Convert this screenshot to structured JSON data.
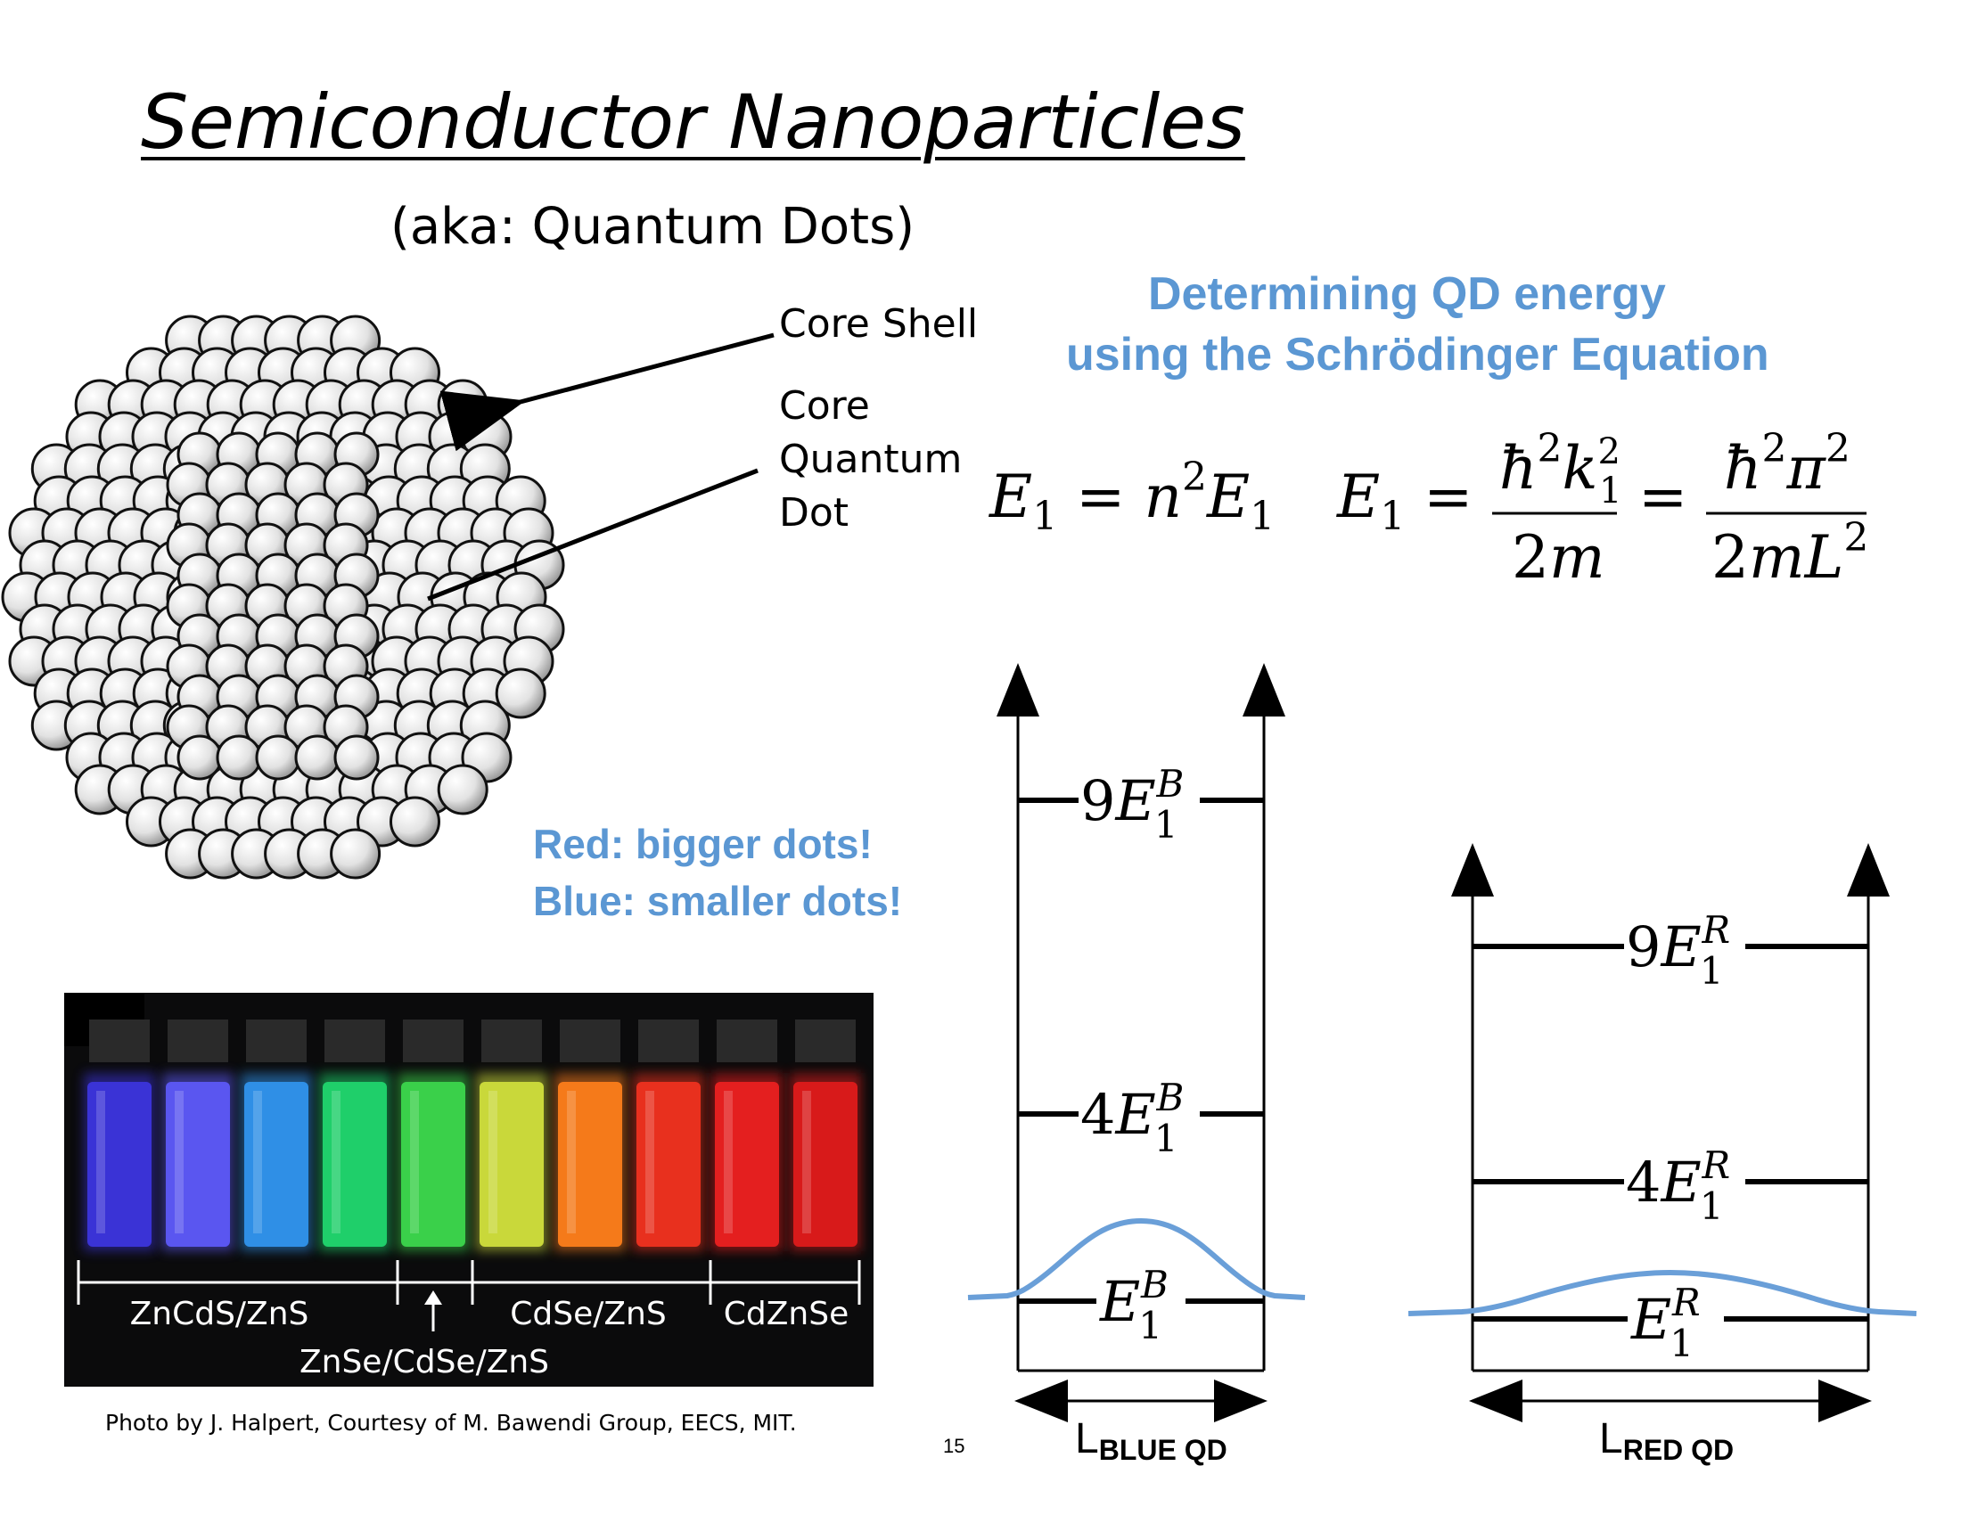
{
  "title": "Semiconductor Nanoparticles",
  "subtitle": "(aka: Quantum Dots)",
  "labels": {
    "core_shell": "Core Shell",
    "core_quantum_dot": [
      "Core",
      "Quantum",
      "Dot"
    ]
  },
  "heading": {
    "line1": "Determining QD energy",
    "line2": "using the Schrödinger Equation"
  },
  "color_note": {
    "red": "Red: bigger dots!",
    "blue": "Blue: smaller dots!"
  },
  "photo": {
    "groups": [
      "ZnCdS/ZnS",
      "CdSe/ZnS",
      "CdZnSe"
    ],
    "arrow_group": "ZnSe/CdSe/ZnS",
    "vial_colors": [
      "#3a33d6",
      "#5a56f0",
      "#2f8fe6",
      "#1fcf6a",
      "#3ad04a",
      "#c9d83a",
      "#f57a1a",
      "#e8301e",
      "#e41f1f",
      "#d81a1a"
    ]
  },
  "credit": "Photo by J. Halpert, Courtesy of M. Bawendi Group, EECS, MIT.",
  "page_number": "15",
  "blue_well": {
    "levels": [
      "9",
      "4",
      ""
    ],
    "superscript": "B",
    "width_label_main": "L",
    "width_label_sub": "BLUE QD"
  },
  "red_well": {
    "levels": [
      "9",
      "4",
      ""
    ],
    "superscript": "R",
    "width_label_main": "L",
    "width_label_sub": "RED QD"
  },
  "colors": {
    "accent_blue": "#5b97d3",
    "wave_blue": "#6a9fd8"
  }
}
